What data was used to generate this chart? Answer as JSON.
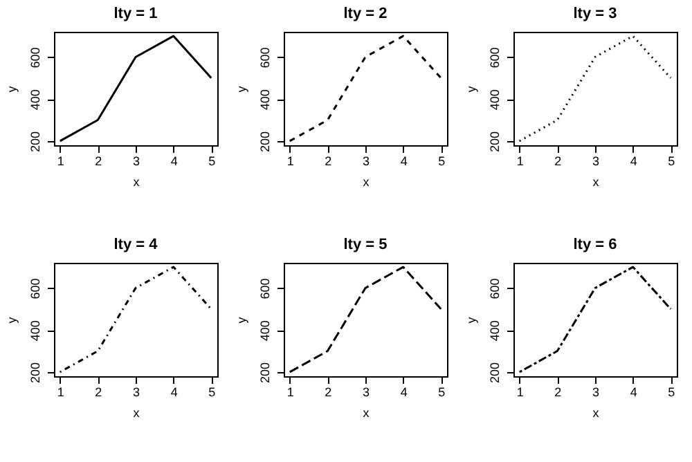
{
  "chart_data": [
    {
      "type": "line",
      "title": "lty = 1",
      "xlabel": "x",
      "ylabel": "y",
      "x": [
        1,
        2,
        3,
        4,
        5
      ],
      "values": [
        200,
        300,
        600,
        700,
        500
      ],
      "color": "#000000",
      "line_style": "solid",
      "xlim": [
        0.84,
        5.16
      ],
      "ylim": [
        180,
        720
      ],
      "xticks": [
        1,
        2,
        3,
        4,
        5
      ],
      "yticks": [
        200,
        400,
        600
      ]
    },
    {
      "type": "line",
      "title": "lty = 2",
      "xlabel": "x",
      "ylabel": "y",
      "x": [
        1,
        2,
        3,
        4,
        5
      ],
      "values": [
        200,
        300,
        600,
        700,
        500
      ],
      "color": "#000000",
      "line_style": "dashed",
      "xlim": [
        0.84,
        5.16
      ],
      "ylim": [
        180,
        720
      ],
      "xticks": [
        1,
        2,
        3,
        4,
        5
      ],
      "yticks": [
        200,
        400,
        600
      ]
    },
    {
      "type": "line",
      "title": "lty = 3",
      "xlabel": "x",
      "ylabel": "y",
      "x": [
        1,
        2,
        3,
        4,
        5
      ],
      "values": [
        200,
        300,
        600,
        700,
        500
      ],
      "color": "#000000",
      "line_style": "dotted",
      "xlim": [
        0.84,
        5.16
      ],
      "ylim": [
        180,
        720
      ],
      "xticks": [
        1,
        2,
        3,
        4,
        5
      ],
      "yticks": [
        200,
        400,
        600
      ]
    },
    {
      "type": "line",
      "title": "lty = 4",
      "xlabel": "x",
      "ylabel": "y",
      "x": [
        1,
        2,
        3,
        4,
        5
      ],
      "values": [
        200,
        300,
        600,
        700,
        500
      ],
      "color": "#000000",
      "line_style": "dashdot",
      "xlim": [
        0.84,
        5.16
      ],
      "ylim": [
        180,
        720
      ],
      "xticks": [
        1,
        2,
        3,
        4,
        5
      ],
      "yticks": [
        200,
        400,
        600
      ]
    },
    {
      "type": "line",
      "title": "lty = 5",
      "xlabel": "x",
      "ylabel": "y",
      "x": [
        1,
        2,
        3,
        4,
        5
      ],
      "values": [
        200,
        300,
        600,
        700,
        500
      ],
      "color": "#000000",
      "line_style": "longdash",
      "xlim": [
        0.84,
        5.16
      ],
      "ylim": [
        180,
        720
      ],
      "xticks": [
        1,
        2,
        3,
        4,
        5
      ],
      "yticks": [
        200,
        400,
        600
      ]
    },
    {
      "type": "line",
      "title": "lty = 6",
      "xlabel": "x",
      "ylabel": "y",
      "x": [
        1,
        2,
        3,
        4,
        5
      ],
      "values": [
        200,
        300,
        600,
        700,
        500
      ],
      "color": "#000000",
      "line_style": "twodash",
      "xlim": [
        0.84,
        5.16
      ],
      "ylim": [
        180,
        720
      ],
      "xticks": [
        1,
        2,
        3,
        4,
        5
      ],
      "yticks": [
        200,
        400,
        600
      ]
    }
  ]
}
